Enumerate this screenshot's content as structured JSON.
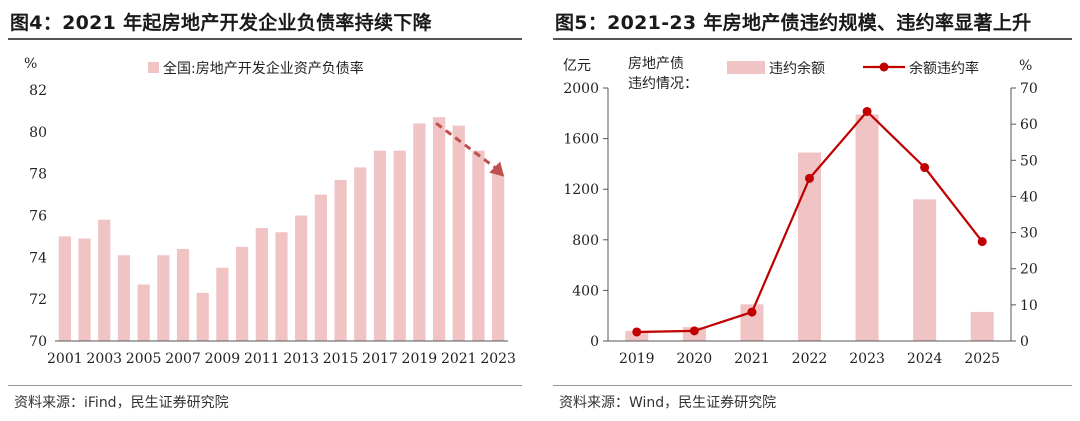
{
  "left": {
    "title": "图4：2021 年起房地产开发企业负债率持续下降",
    "source": "资料来源：iFind，民生证券研究院",
    "chart_data": {
      "type": "bar",
      "ylabel": "%",
      "ylim": [
        70,
        82
      ],
      "yticks": [
        70,
        72,
        74,
        76,
        78,
        80,
        82
      ],
      "categories": [
        "2001",
        "2002",
        "2003",
        "2004",
        "2005",
        "2006",
        "2007",
        "2008",
        "2009",
        "2010",
        "2011",
        "2012",
        "2013",
        "2014",
        "2015",
        "2016",
        "2017",
        "2018",
        "2019",
        "2020",
        "2021",
        "2022",
        "2023"
      ],
      "tick_labels": [
        "2001",
        "2003",
        "2005",
        "2007",
        "2009",
        "2011",
        "2013",
        "2015",
        "2017",
        "2019",
        "2021",
        "2023"
      ],
      "series": [
        {
          "name": "全国:房地产开发企业资产负债率",
          "color": "#f0c3c5",
          "values": [
            75.0,
            74.9,
            75.8,
            74.1,
            72.7,
            74.1,
            74.4,
            72.3,
            73.5,
            74.5,
            75.4,
            75.2,
            76.0,
            77.0,
            77.7,
            78.3,
            79.1,
            79.1,
            80.4,
            80.7,
            80.3,
            79.1,
            78.0
          ]
        }
      ],
      "legend_position": "top",
      "annotation": {
        "type": "dashed-arrow",
        "direction": "down-right",
        "color": "#c0504d",
        "from_year": "2020",
        "to_year": "2023"
      }
    }
  },
  "right": {
    "title": "图5：2021-23 年房地产债违约规模、违约率显著上升",
    "source": "资料来源：Wind，民生证券研究院",
    "chart_data": {
      "type": "bar",
      "categories": [
        "2019",
        "2020",
        "2021",
        "2022",
        "2023",
        "2024",
        "2025"
      ],
      "left_axis": {
        "label": "亿元",
        "ylim": [
          0,
          2000
        ],
        "ticks": [
          0,
          400,
          800,
          1200,
          1600,
          2000
        ]
      },
      "right_axis": {
        "label": "%",
        "ylim": [
          0,
          70
        ],
        "ticks": [
          0,
          10,
          20,
          30,
          40,
          50,
          60,
          70
        ]
      },
      "legend_header": [
        "房地产债",
        "违约情况："
      ],
      "series": [
        {
          "name": "违约余额",
          "type": "bar",
          "axis": "left",
          "color": "#f0c3c5",
          "values": [
            80,
            110,
            290,
            1490,
            1790,
            1120,
            230
          ]
        },
        {
          "name": "余额违约率",
          "type": "line",
          "axis": "right",
          "color": "#c00000",
          "values": [
            2.5,
            2.8,
            8.0,
            45.0,
            63.5,
            48.0,
            27.5
          ]
        }
      ],
      "legend_position": "top"
    }
  }
}
